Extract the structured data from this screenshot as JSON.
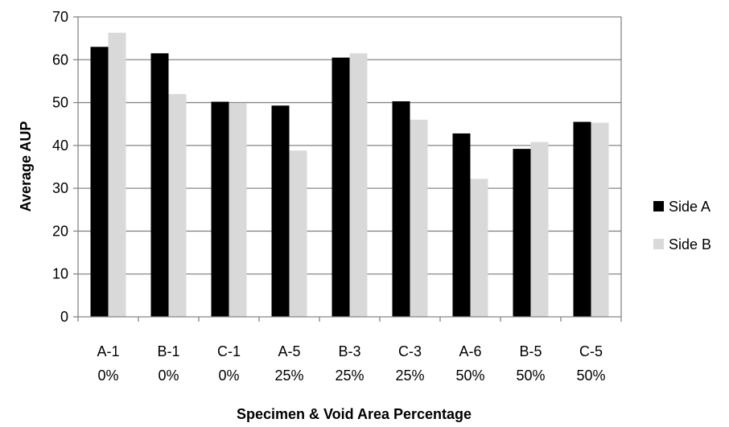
{
  "chart_data": {
    "type": "bar",
    "title": "",
    "xlabel": "Specimen & Void Area Percentage",
    "ylabel": "Average AUP",
    "ylim": [
      0,
      70
    ],
    "yticks": [
      0,
      10,
      20,
      30,
      40,
      50,
      60,
      70
    ],
    "grid": true,
    "legend_position": "right",
    "categories": [
      [
        "A-1",
        "0%"
      ],
      [
        "B-1",
        "0%"
      ],
      [
        "C-1",
        "0%"
      ],
      [
        "A-5",
        "25%"
      ],
      [
        "B-3",
        "25%"
      ],
      [
        "C-3",
        "25%"
      ],
      [
        "A-6",
        "50%"
      ],
      [
        "B-5",
        "50%"
      ],
      [
        "C-5",
        "50%"
      ]
    ],
    "series": [
      {
        "name": "Side A",
        "color": "#000000",
        "values": [
          63,
          61.5,
          50.2,
          49.3,
          60.5,
          50.3,
          42.8,
          39.2,
          45.5
        ]
      },
      {
        "name": "Side B",
        "color": "#d9d9d9",
        "values": [
          66.3,
          52,
          49.8,
          38.8,
          61.5,
          46,
          32.2,
          40.8,
          45.3
        ]
      }
    ]
  }
}
